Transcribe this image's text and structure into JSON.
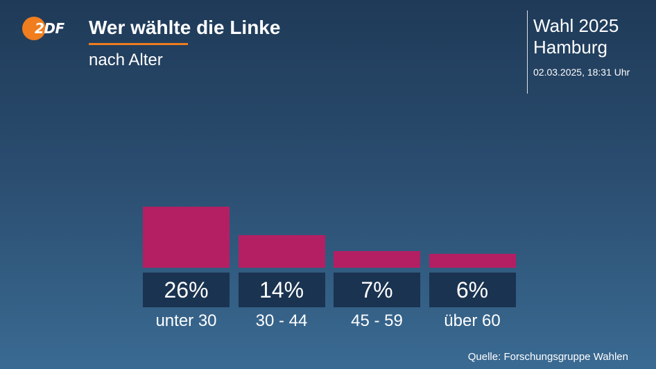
{
  "brand": {
    "logo_text": "2DF",
    "accent_color": "#f07d1e"
  },
  "header": {
    "title": "Wer wählte die Linke",
    "subtitle": "nach Alter",
    "election": "Wahl 2025",
    "place": "Hamburg",
    "timestamp": "02.03.2025, 18:31 Uhr"
  },
  "chart_data": {
    "type": "bar",
    "title": "Wer wählte die Linke",
    "subtitle": "nach Alter",
    "categories": [
      "unter 30",
      "30 - 44",
      "45 - 59",
      "über 60"
    ],
    "values": [
      26,
      14,
      7,
      6
    ],
    "value_labels": [
      "26%",
      "14%",
      "7%",
      "6%"
    ],
    "unit": "%",
    "bar_color": "#b41f63",
    "grid": false
  },
  "footer": {
    "source": "Quelle: Forschungsgruppe Wahlen"
  }
}
